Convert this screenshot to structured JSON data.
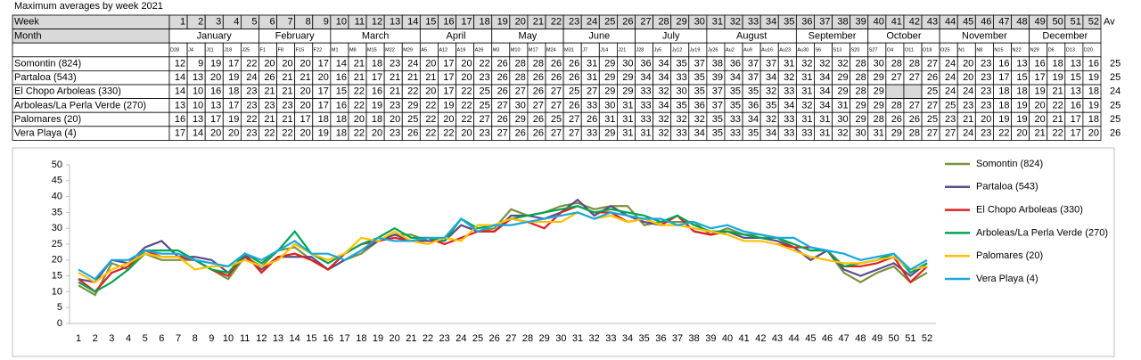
{
  "title": "Maximum averages by week 2021",
  "table": {
    "week_label": "Week",
    "month_label": "Month",
    "av_label": "Av",
    "months": [
      {
        "name": "January",
        "dates": [
          "D28",
          "J4",
          "J11",
          "J18",
          "J25"
        ]
      },
      {
        "name": "February",
        "dates": [
          "F1",
          "F8",
          "F15",
          "F22"
        ]
      },
      {
        "name": "March",
        "dates": [
          "M1",
          "M8",
          "M15",
          "M22",
          "M29"
        ]
      },
      {
        "name": "April",
        "dates": [
          "A5",
          "A12",
          "A19",
          "A26"
        ]
      },
      {
        "name": "May",
        "dates": [
          "M3",
          "M10",
          "M17",
          "M24"
        ]
      },
      {
        "name": "June",
        "dates": [
          "M31",
          "J7",
          "J14",
          "J21"
        ]
      },
      {
        "name": "July",
        "dates": [
          "J28",
          "Jy5",
          "Jy12",
          "Jy19"
        ]
      },
      {
        "name": "August",
        "dates": [
          "Jy26",
          "Au2",
          "Au9",
          "Au16",
          "Au23"
        ]
      },
      {
        "name": "September",
        "dates": [
          "Au30",
          "S6",
          "S13",
          "S20"
        ]
      },
      {
        "name": "October",
        "dates": [
          "S27",
          "O4",
          "O11",
          "O18"
        ]
      },
      {
        "name": "November",
        "dates": [
          "O25",
          "N1",
          "N8",
          "N15",
          "N22"
        ]
      },
      {
        "name": "December",
        "dates": [
          "N29",
          "D6",
          "D13",
          "D20"
        ]
      }
    ],
    "averages": [
      25,
      25,
      24,
      25,
      25,
      26
    ]
  },
  "chart_data": {
    "type": "line",
    "legend": "right",
    "x": [
      1,
      2,
      3,
      4,
      5,
      6,
      7,
      8,
      9,
      10,
      11,
      12,
      13,
      14,
      15,
      16,
      17,
      18,
      19,
      20,
      21,
      22,
      23,
      24,
      25,
      26,
      27,
      28,
      29,
      30,
      31,
      32,
      33,
      34,
      35,
      36,
      37,
      38,
      39,
      40,
      41,
      42,
      43,
      44,
      45,
      46,
      47,
      48,
      49,
      50,
      51,
      52
    ],
    "xlim": [
      1,
      52
    ],
    "ylim": [
      0,
      50
    ],
    "yticks": [
      0,
      5,
      10,
      15,
      20,
      25,
      30,
      35,
      40,
      45,
      50
    ],
    "series": [
      {
        "name": "Somontin (824)",
        "color": "#77933c",
        "values": [
          12,
          9,
          19,
          17,
          22,
          20,
          20,
          20,
          17,
          14,
          21,
          18,
          23,
          24,
          20,
          17,
          20,
          22,
          26,
          28,
          28,
          26,
          26,
          31,
          29,
          30,
          36,
          34,
          35,
          37,
          38,
          36,
          37,
          37,
          31,
          32,
          32,
          32,
          28,
          30,
          28,
          28,
          27,
          24,
          20,
          23,
          16,
          13,
          16,
          18,
          13,
          16
        ]
      },
      {
        "name": "Partaloa (543)",
        "color": "#5f4b8b",
        "values": [
          14,
          13,
          20,
          19,
          24,
          26,
          21,
          21,
          20,
          16,
          21,
          17,
          21,
          21,
          21,
          17,
          20,
          23,
          26,
          28,
          26,
          26,
          26,
          31,
          29,
          29,
          34,
          34,
          33,
          35,
          39,
          34,
          37,
          34,
          32,
          31,
          34,
          29,
          28,
          29,
          27,
          27,
          26,
          24,
          20,
          23,
          17,
          15,
          17,
          19,
          15,
          19
        ]
      },
      {
        "name": "El Chopo Arboleas (330)",
        "color": "#e02020",
        "values": [
          14,
          10,
          16,
          18,
          23,
          21,
          21,
          20,
          17,
          15,
          22,
          16,
          21,
          22,
          20,
          17,
          22,
          25,
          26,
          27,
          26,
          27,
          25,
          27,
          29,
          29,
          33,
          32,
          30,
          35,
          37,
          35,
          35,
          32,
          33,
          31,
          34,
          29,
          28,
          29,
          null,
          null,
          25,
          24,
          24,
          23,
          18,
          18,
          19,
          21,
          13,
          18
        ]
      },
      {
        "name": "Arboleas/La Perla Verde (270)",
        "color": "#00a550",
        "values": [
          13,
          10,
          13,
          17,
          23,
          23,
          23,
          20,
          17,
          16,
          22,
          19,
          23,
          29,
          22,
          19,
          22,
          25,
          27,
          30,
          27,
          27,
          26,
          33,
          30,
          31,
          33,
          34,
          35,
          36,
          37,
          35,
          36,
          35,
          34,
          32,
          34,
          31,
          29,
          29,
          28,
          27,
          27,
          25,
          23,
          23,
          18,
          19,
          20,
          22,
          16,
          19
        ]
      },
      {
        "name": "Palomares (20)",
        "color": "#ffc000",
        "values": [
          16,
          13,
          17,
          19,
          22,
          21,
          21,
          17,
          18,
          18,
          20,
          18,
          20,
          25,
          22,
          20,
          22,
          27,
          26,
          29,
          26,
          25,
          27,
          26,
          31,
          31,
          33,
          32,
          32,
          32,
          35,
          33,
          34,
          32,
          33,
          31,
          31,
          30,
          29,
          28,
          26,
          26,
          25,
          23,
          21,
          20,
          19,
          19,
          20,
          21,
          17,
          18
        ]
      },
      {
        "name": "Vera Playa (4)",
        "color": "#17a9e0",
        "values": [
          17,
          14,
          20,
          20,
          23,
          22,
          22,
          20,
          19,
          18,
          22,
          20,
          23,
          26,
          22,
          22,
          20,
          23,
          27,
          26,
          26,
          27,
          27,
          33,
          29,
          31,
          31,
          32,
          33,
          34,
          35,
          33,
          35,
          34,
          33,
          33,
          31,
          32,
          30,
          31,
          29,
          28,
          27,
          27,
          24,
          23,
          22,
          20,
          21,
          22,
          17,
          20
        ]
      }
    ]
  }
}
